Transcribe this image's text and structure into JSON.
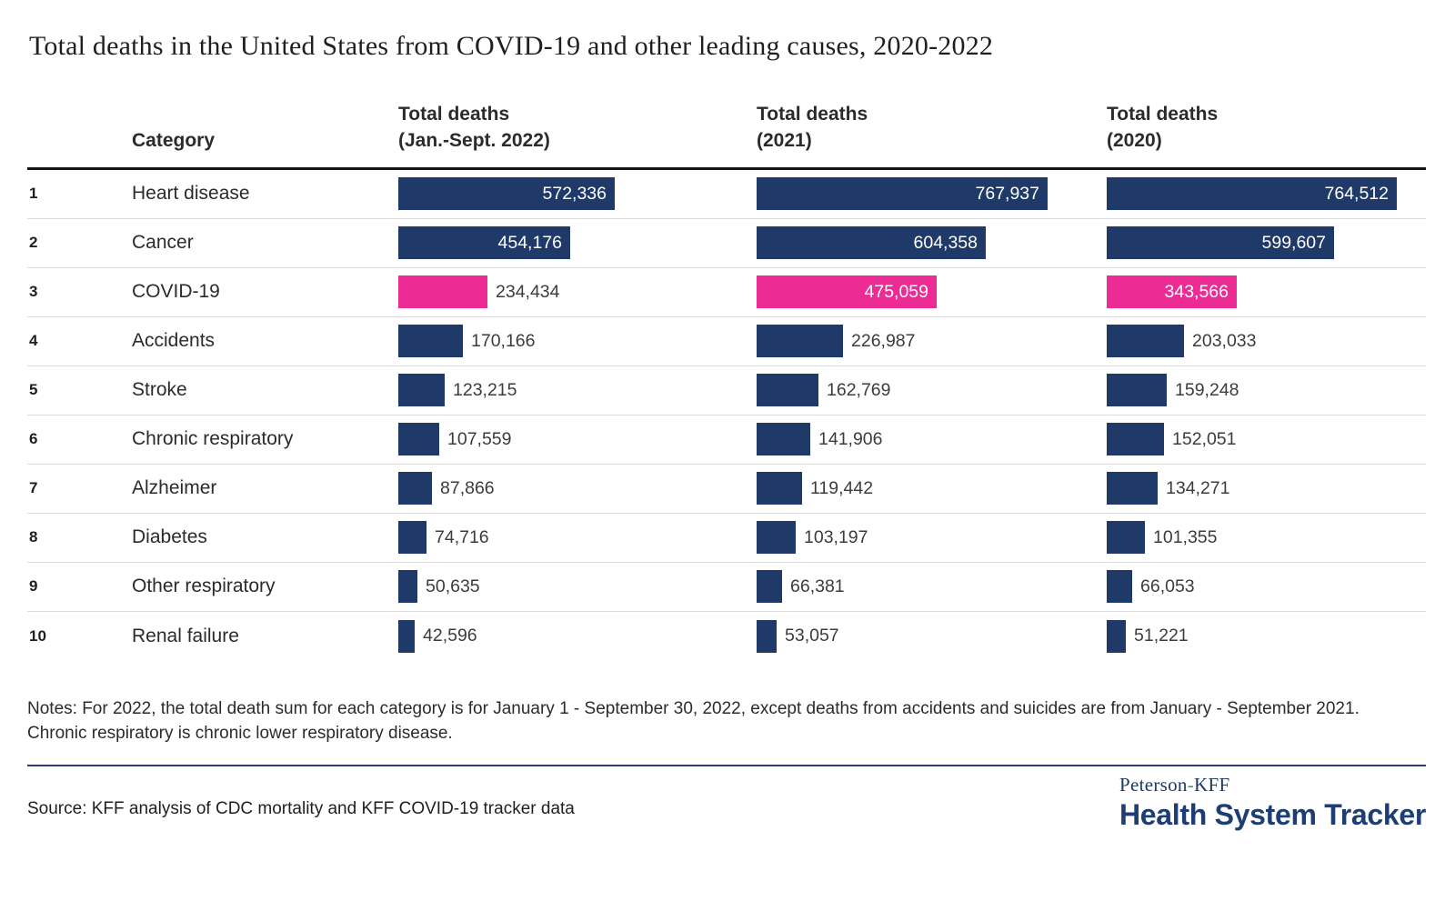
{
  "title": "Total deaths in the United States from COVID-19 and other leading causes, 2020-2022",
  "table": {
    "columns": {
      "category": "Category",
      "c2022": {
        "line1": "Total deaths",
        "line2": "(Jan.-Sept. 2022)"
      },
      "c2021": {
        "line1": "Total deaths",
        "line2": "(2021)"
      },
      "c2020": {
        "line1": "Total deaths",
        "line2": "(2020)"
      }
    }
  },
  "chart_data": {
    "type": "bar",
    "orientation": "horizontal",
    "title": "Total deaths in the United States from COVID-19 and other leading causes, 2020-2022",
    "categories": [
      "Heart disease",
      "Cancer",
      "COVID-19",
      "Accidents",
      "Stroke",
      "Chronic respiratory",
      "Alzheimer",
      "Diabetes",
      "Other respiratory",
      "Renal failure"
    ],
    "series": [
      {
        "name": "Total deaths (Jan.-Sept. 2022)",
        "values": [
          572336,
          454176,
          234434,
          170166,
          123215,
          107559,
          87866,
          74716,
          50635,
          42596
        ]
      },
      {
        "name": "Total deaths (2021)",
        "values": [
          767937,
          604358,
          475059,
          226987,
          162769,
          141906,
          119442,
          103197,
          66381,
          53057
        ]
      },
      {
        "name": "Total deaths (2020)",
        "values": [
          764512,
          599607,
          343566,
          203033,
          159248,
          152051,
          134271,
          101355,
          66053,
          51221
        ]
      }
    ],
    "highlight_category": "COVID-19",
    "xlim": [
      0,
      767937
    ],
    "grid": false,
    "legend": "none",
    "value_labels": "on"
  },
  "notes": "Notes: For 2022, the total death sum for each category is for January 1 - September 30, 2022, except deaths from accidents and suicides are from January - September 2021. Chronic respiratory is chronic lower respiratory disease.",
  "source": "Source: KFF analysis of CDC mortality and KFF COVID-19 tracker data",
  "logo": {
    "line1_part1": "Peterson",
    "line1_hyphen": "-",
    "line1_part2": "KFF",
    "line2": "Health System Tracker"
  },
  "colors": {
    "bar": "#1F3A68",
    "highlight": "#EC2B95",
    "divider": "#2B3C72"
  }
}
